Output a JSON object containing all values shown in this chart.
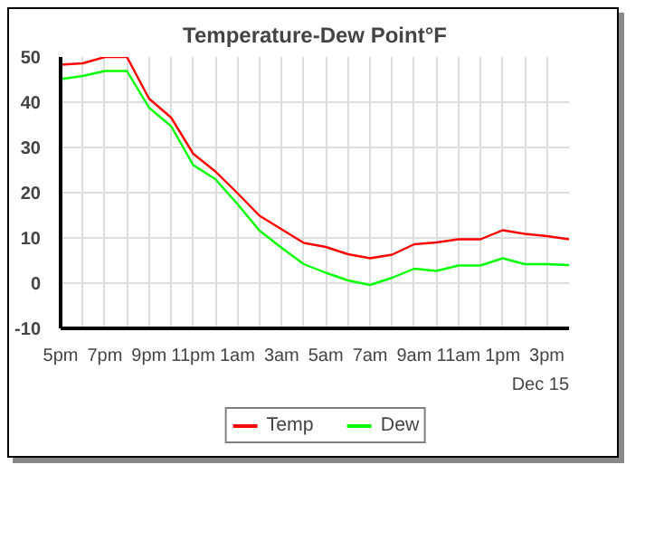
{
  "chart_data": {
    "type": "line",
    "title": "Temperature-Dew Point°F",
    "categories": [
      "5pm",
      null,
      "7pm",
      null,
      "9pm",
      null,
      "11pm",
      null,
      "1am",
      null,
      "3am",
      null,
      "5am",
      null,
      "7am",
      null,
      "9am",
      null,
      "11am",
      null,
      "1pm",
      null,
      "3pm",
      null
    ],
    "series": [
      {
        "name": "Temp",
        "color": "#ff0000",
        "values": [
          48.3,
          48.6,
          50,
          50,
          40.8,
          36.6,
          28.6,
          24.7,
          19.9,
          14.9,
          11.9,
          8.9,
          8.0,
          6.4,
          5.5,
          6.3,
          8.6,
          9.0,
          9.7,
          9.7,
          11.7,
          10.9,
          10.4,
          9.7
        ]
      },
      {
        "name": "Dew",
        "color": "#00ff00",
        "values": [
          45.1,
          45.8,
          46.9,
          46.9,
          38.8,
          34.7,
          26.1,
          23.0,
          17.5,
          11.6,
          7.8,
          4.2,
          2.3,
          0.6,
          -0.4,
          1.2,
          3.2,
          2.7,
          3.9,
          3.9,
          5.5,
          4.2,
          4.2,
          4.0
        ]
      }
    ],
    "ylim": [
      -10,
      50
    ],
    "yticks": [
      -10,
      0,
      10,
      20,
      30,
      40,
      50
    ],
    "annotations": [
      "Dec 15"
    ],
    "grid": true,
    "legend": "bottom",
    "marker": "none",
    "line_style": "solid"
  }
}
